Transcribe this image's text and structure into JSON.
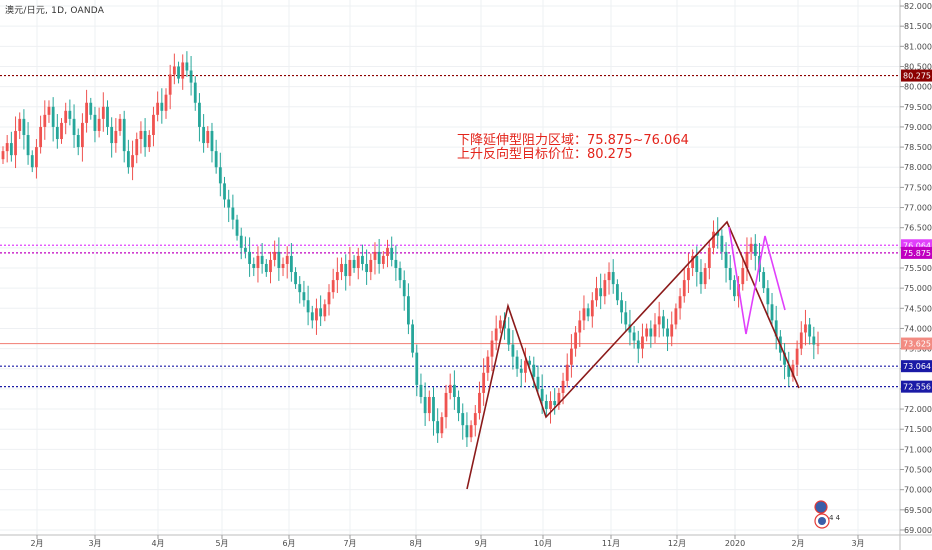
{
  "header": {
    "symbol_line": "澳元/日元, 1D, OANDA"
  },
  "annotation": {
    "line1": "下降延伸型阻力区域：75.875~76.064",
    "line2": "上升反向型目标价位：80.275"
  },
  "colors": {
    "up": "#ef5350",
    "down": "#26a69a",
    "wave": "#8b1a1a",
    "pattern": "#e040fb"
  },
  "chart_data": {
    "type": "candlestick",
    "y_ticks": [
      "69.000",
      "69.500",
      "70.000",
      "70.500",
      "71.000",
      "71.500",
      "72.000",
      "72.500",
      "73.000",
      "73.500",
      "74.000",
      "74.500",
      "75.000",
      "75.500",
      "76.000",
      "76.500",
      "77.000",
      "77.500",
      "78.000",
      "78.500",
      "79.000",
      "79.500",
      "80.000",
      "80.500",
      "81.000",
      "81.500",
      "82.000"
    ],
    "ylim": [
      68.9,
      82.1
    ],
    "x_ticks": [
      "2月",
      "3月",
      "4月",
      "5月",
      "6月",
      "7月",
      "8月",
      "9月",
      "10月",
      "11月",
      "12月",
      "2020",
      "2月",
      "3月"
    ],
    "price_levels": [
      {
        "label": "80.275",
        "value": 80.275,
        "color": "#8b0000",
        "style": "dotted"
      },
      {
        "label": "76.064",
        "value": 76.064,
        "color": "#e040fb",
        "style": "dotted"
      },
      {
        "label": "75.875",
        "value": 75.875,
        "color": "#c000c0",
        "style": "dotted"
      },
      {
        "label": "73.625",
        "value": 73.625,
        "color": "#f28b82",
        "style": "solid"
      },
      {
        "label": "73.064",
        "value": 73.064,
        "color": "#1a1aa6",
        "style": "dotted"
      },
      {
        "label": "72.556",
        "value": 72.556,
        "color": "#1a1aa6",
        "style": "dotted"
      }
    ],
    "closes": [
      78.4,
      78.6,
      78.3,
      78.9,
      79.2,
      78.8,
      78.3,
      78.0,
      78.5,
      79.0,
      79.3,
      79.5,
      79.0,
      78.7,
      79.1,
      79.4,
      79.2,
      78.8,
      78.5,
      79.1,
      79.6,
      79.3,
      78.9,
      79.2,
      79.5,
      79.0,
      78.6,
      78.9,
      79.2,
      78.4,
      78.0,
      78.3,
      78.7,
      78.9,
      78.5,
      78.8,
      79.3,
      79.6,
      79.4,
      79.8,
      80.3,
      80.5,
      80.2,
      80.6,
      80.4,
      80.1,
      79.6,
      79.0,
      78.6,
      78.9,
      78.4,
      78.0,
      77.6,
      77.2,
      77.0,
      76.7,
      76.3,
      76.0,
      75.9,
      75.6,
      75.5,
      75.8,
      75.6,
      75.4,
      75.7,
      75.9,
      75.5,
      75.6,
      75.8,
      75.4,
      75.1,
      74.9,
      74.7,
      74.4,
      74.2,
      74.5,
      74.3,
      74.6,
      74.9,
      75.2,
      75.4,
      75.6,
      75.3,
      75.7,
      75.5,
      75.8,
      75.6,
      75.4,
      75.7,
      75.9,
      75.6,
      75.8,
      76.0,
      75.7,
      75.5,
      75.2,
      74.8,
      74.1,
      73.4,
      72.6,
      72.3,
      71.9,
      72.3,
      71.7,
      71.4,
      71.8,
      72.4,
      72.6,
      72.3,
      71.9,
      71.6,
      71.3,
      71.6,
      71.9,
      72.4,
      72.9,
      73.3,
      73.7,
      74.0,
      74.2,
      74.0,
      73.6,
      73.3,
      73.0,
      72.9,
      73.2,
      73.1,
      72.8,
      72.5,
      72.2,
      72.0,
      72.2,
      72.1,
      72.4,
      72.7,
      73.1,
      73.5,
      73.9,
      74.2,
      74.5,
      74.3,
      74.7,
      75.0,
      74.8,
      75.2,
      75.4,
      75.1,
      74.7,
      74.4,
      74.1,
      73.9,
      73.7,
      73.5,
      73.8,
      74.0,
      73.8,
      74.1,
      74.3,
      74.0,
      73.8,
      74.1,
      74.5,
      74.8,
      75.2,
      75.5,
      75.8,
      75.4,
      75.1,
      75.5,
      76.0,
      76.4,
      76.3,
      75.9,
      75.5,
      75.2,
      74.8,
      75.1,
      75.5,
      75.9,
      76.1,
      75.8,
      75.4,
      75.0,
      74.6,
      74.2,
      73.8,
      73.4,
      73.1,
      72.8,
      73.1,
      73.5,
      73.9,
      74.1,
      73.8,
      73.6,
      73.6
    ]
  }
}
